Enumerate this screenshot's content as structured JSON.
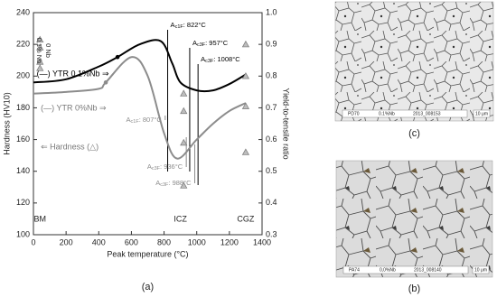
{
  "chart_data": {
    "type": "line",
    "panel_label": "(a)",
    "xlabel": "Peak temperature (°C)",
    "ylabel": "Hardness (HV10)",
    "y2label": "Yield-to-tensile ratio",
    "xlim": [
      0,
      1400
    ],
    "xticks": [
      0,
      200,
      400,
      600,
      800,
      1000,
      1200,
      1400
    ],
    "ylim": [
      100,
      240
    ],
    "yticks": [
      100,
      120,
      140,
      160,
      180,
      200,
      220,
      240
    ],
    "y2lim": [
      0.3,
      1.0
    ],
    "y2ticks": [
      0.3,
      0.4,
      0.5,
      0.6,
      0.7,
      0.8,
      0.9,
      {
        "value": 1.0,
        "label": "1.0"
      }
    ],
    "series": [
      {
        "name": "(—) YTR 0.1%Nb ⇒",
        "color": "#000000",
        "axis": "y2",
        "x": [
          0,
          200,
          400,
          515,
          650,
          780,
          850,
          900,
          1000,
          1100,
          1200,
          1300
        ],
        "values": [
          0.78,
          0.79,
          0.83,
          0.86,
          0.9,
          0.91,
          0.84,
          0.78,
          0.755,
          0.755,
          0.775,
          0.805
        ],
        "points": [
          {
            "x": 515,
            "value": 0.86
          }
        ]
      },
      {
        "name": "(—) YTR 0%Nb ⇒",
        "color": "#8c8c8c",
        "axis": "y2",
        "x": [
          0,
          200,
          400,
          443,
          600,
          700,
          800,
          880,
          1000,
          1100,
          1200,
          1300
        ],
        "values": [
          0.745,
          0.75,
          0.76,
          0.78,
          0.86,
          0.8,
          0.62,
          0.54,
          0.6,
          0.65,
          0.69,
          0.715
        ],
        "points": [
          {
            "x": 443,
            "value": 0.78
          }
        ]
      },
      {
        "name": "⇐ Hardness (△)",
        "type": "scatter",
        "color": "#9a9a9a",
        "x": [
          40,
          40,
          40,
          40,
          920,
          920,
          920,
          920,
          1300,
          1300,
          1300,
          1300
        ],
        "values": [
          223,
          218,
          209,
          205,
          189,
          178,
          158,
          131,
          220,
          200,
          181,
          152
        ]
      }
    ],
    "groups": [
      "0.1% Nb",
      "0 Nb"
    ],
    "zones": [
      "BM",
      "ICZ",
      "CGZ"
    ],
    "transformations": [
      {
        "x": 822,
        "symbol": "A",
        "sub": "c1F",
        "text": ": 822°C",
        "color": "#000000"
      },
      {
        "x": 957,
        "symbol": "A",
        "sub": "c3F",
        "text": ": 957°C",
        "color": "#000000"
      },
      {
        "x": 1008,
        "symbol": "A",
        "sub": "c3F",
        "text": ": 1008°C",
        "color": "#000000"
      },
      {
        "x": 807,
        "symbol": "A",
        "sub": "c1F",
        "text": ": 807°C",
        "color": "#8c8c8c"
      },
      {
        "x": 936,
        "symbol": "A",
        "sub": "c3F",
        "text": ": 936°C",
        "color": "#8c8c8c"
      },
      {
        "x": 988,
        "symbol": "A",
        "sub": "c3F",
        "text": ": 988°C",
        "color": "#8c8c8c"
      }
    ]
  },
  "micrographs": [
    {
      "label": "(c)",
      "caption": [
        "PD70",
        "0.1%Nb",
        "2013_008153"
      ],
      "scale": "10 μm"
    },
    {
      "label": "(b)",
      "caption": [
        "PA74",
        "0,0%Nb",
        "2013_008140"
      ],
      "scale": "10 μm"
    }
  ]
}
